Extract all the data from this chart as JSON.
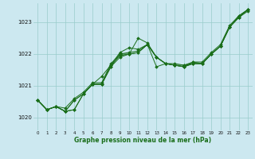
{
  "xlabel": "Graphe pression niveau de la mer (hPa)",
  "bg_color": "#cce8f0",
  "grid_color": "#99cccc",
  "line_color": "#1a6e1a",
  "xlim": [
    -0.5,
    23.5
  ],
  "ylim": [
    1019.6,
    1023.6
  ],
  "yticks": [
    1020,
    1021,
    1022,
    1023
  ],
  "xticks": [
    0,
    1,
    2,
    3,
    4,
    5,
    6,
    7,
    8,
    9,
    10,
    11,
    12,
    13,
    14,
    15,
    16,
    17,
    18,
    19,
    20,
    21,
    22,
    23
  ],
  "series": [
    [
      1020.55,
      1020.25,
      1020.35,
      1020.2,
      1020.25,
      1020.75,
      1021.05,
      1021.05,
      1021.6,
      1022.0,
      1022.0,
      1022.5,
      1022.35,
      1021.9,
      1021.7,
      1021.65,
      1021.6,
      1021.7,
      1021.7,
      1022.0,
      1022.25,
      1022.85,
      1023.15,
      1023.35
    ],
    [
      1020.55,
      1020.25,
      1020.35,
      1020.2,
      1020.55,
      1020.75,
      1021.05,
      1021.3,
      1021.65,
      1022.05,
      1022.2,
      1022.15,
      1022.3,
      1021.6,
      1021.7,
      1021.65,
      1021.6,
      1021.75,
      1021.7,
      1022.0,
      1022.25,
      1022.85,
      1023.2,
      1023.4
    ],
    [
      1020.55,
      1020.25,
      1020.35,
      1020.2,
      1020.25,
      1020.75,
      1021.05,
      1021.05,
      1021.6,
      1021.9,
      1022.0,
      1022.05,
      1022.3,
      1021.9,
      1021.7,
      1021.65,
      1021.65,
      1021.7,
      1021.7,
      1022.0,
      1022.25,
      1022.85,
      1023.15,
      1023.4
    ],
    [
      1020.55,
      1020.25,
      1020.35,
      1020.2,
      1020.55,
      1020.75,
      1021.05,
      1021.05,
      1021.65,
      1021.95,
      1022.0,
      1022.05,
      1022.3,
      1021.9,
      1021.7,
      1021.65,
      1021.6,
      1021.7,
      1021.7,
      1022.0,
      1022.25,
      1022.85,
      1023.15,
      1023.4
    ],
    [
      1020.55,
      1020.25,
      1020.35,
      1020.3,
      1020.6,
      1020.8,
      1021.1,
      1021.1,
      1021.7,
      1022.0,
      1022.05,
      1022.1,
      1022.3,
      1021.9,
      1021.7,
      1021.7,
      1021.65,
      1021.75,
      1021.75,
      1022.05,
      1022.3,
      1022.9,
      1023.2,
      1023.4
    ]
  ]
}
